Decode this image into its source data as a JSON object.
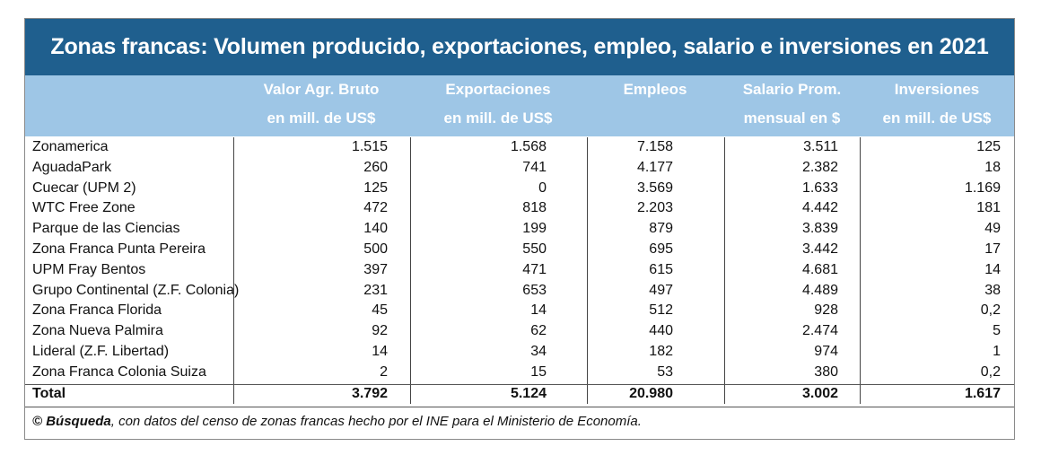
{
  "chart_data": {
    "type": "table",
    "title": "Zonas francas: Volumen producido, exportaciones, empleo, salario e inversiones en 2021",
    "columns": [
      {
        "line1": "Valor Agr. Bruto",
        "line2": "en mill. de US$"
      },
      {
        "line1": "Exportaciones",
        "line2": "en mill. de US$"
      },
      {
        "line1": "Empleos",
        "line2": ""
      },
      {
        "line1": "Salario Prom.",
        "line2": "mensual en $"
      },
      {
        "line1": "Inversiones",
        "line2": "en mill. de US$"
      }
    ],
    "rows": [
      {
        "name": "Zonamerica",
        "values": [
          "1.515",
          "1.568",
          "7.158",
          "3.511",
          "125"
        ]
      },
      {
        "name": "AguadaPark",
        "values": [
          "260",
          "741",
          "4.177",
          "2.382",
          "18"
        ]
      },
      {
        "name": "Cuecar (UPM 2)",
        "values": [
          "125",
          "0",
          "3.569",
          "1.633",
          "1.169"
        ]
      },
      {
        "name": "WTC Free Zone",
        "values": [
          "472",
          "818",
          "2.203",
          "4.442",
          "181"
        ]
      },
      {
        "name": "Parque de las Ciencias",
        "values": [
          "140",
          "199",
          "879",
          "3.839",
          "49"
        ]
      },
      {
        "name": "Zona Franca Punta Pereira",
        "values": [
          "500",
          "550",
          "695",
          "3.442",
          "17"
        ]
      },
      {
        "name": "UPM Fray Bentos",
        "values": [
          "397",
          "471",
          "615",
          "4.681",
          "14"
        ]
      },
      {
        "name": "Grupo Continental (Z.F. Colonia)",
        "values": [
          "231",
          "653",
          "497",
          "4.489",
          "38"
        ]
      },
      {
        "name": "Zona Franca Florida",
        "values": [
          "45",
          "14",
          "512",
          "928",
          "0,2"
        ]
      },
      {
        "name": "Zona Nueva Palmira",
        "values": [
          "92",
          "62",
          "440",
          "2.474",
          "5"
        ]
      },
      {
        "name": "Lideral (Z.F. Libertad)",
        "values": [
          "14",
          "34",
          "182",
          "974",
          "1"
        ]
      },
      {
        "name": "Zona Franca Colonia Suiza",
        "values": [
          "2",
          "15",
          "53",
          "380",
          "0,2"
        ]
      }
    ],
    "total": {
      "name": "Total",
      "values": [
        "3.792",
        "5.124",
        "20.980",
        "3.002",
        "1.617"
      ]
    },
    "source_brand": "© Búsqueda",
    "source_text": ",  con datos del censo de zonas francas hecho por el INE para el Ministerio de Economía."
  },
  "colors": {
    "title_bg": "#1f5f8e",
    "header_bg": "#9ec6e6",
    "header_text": "#ffffff"
  }
}
